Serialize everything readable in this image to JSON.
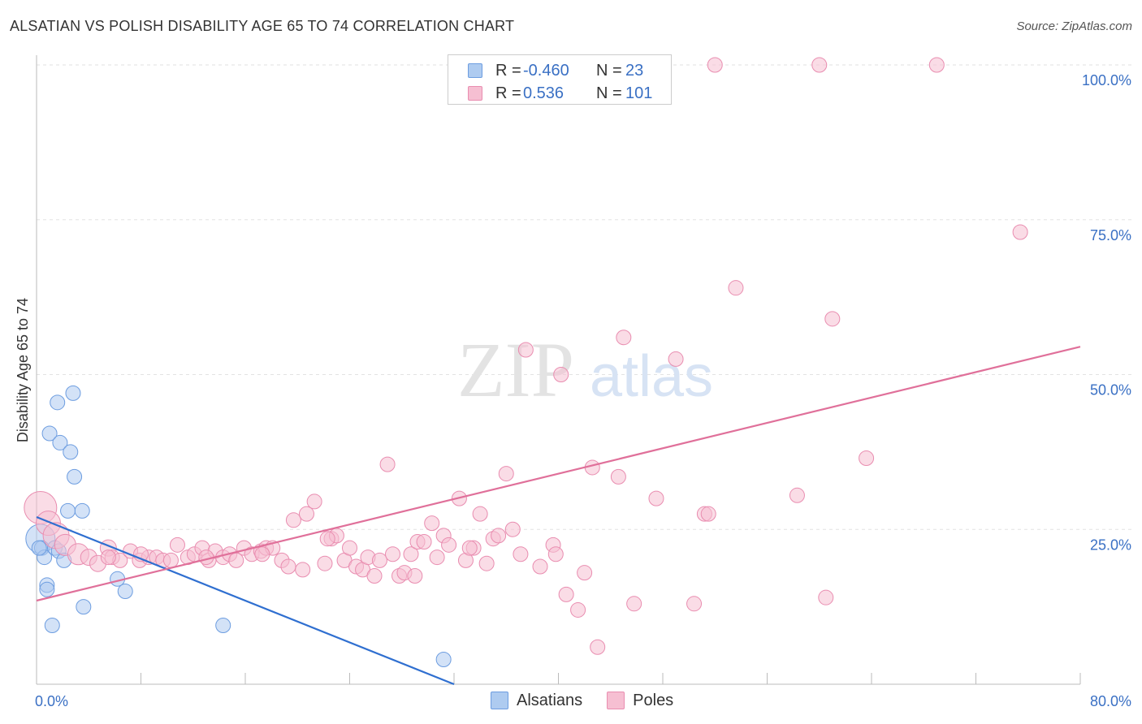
{
  "header": {
    "title": "ALSATIAN VS POLISH DISABILITY AGE 65 TO 74 CORRELATION CHART",
    "source": "Source: ZipAtlas.com"
  },
  "legend": {
    "rows": [
      {
        "r_label": "R =",
        "r_value": "-0.460",
        "n_label": "N =",
        "n_value": "23"
      },
      {
        "r_label": "R =",
        "r_value": "0.536",
        "n_label": "N =",
        "n_value": "101"
      }
    ],
    "series": [
      "Alsatians",
      "Poles"
    ]
  },
  "watermark": {
    "zip": "ZIP",
    "atlas": "atlas"
  },
  "colors": {
    "alsatians_fill": "#aecbf0",
    "alsatians_stroke": "#6d9de0",
    "alsatians_line": "#2f6fd0",
    "poles_fill": "#f6bfd2",
    "poles_stroke": "#e98db0",
    "poles_line": "#e0709a",
    "tick_text": "#3a70c4"
  },
  "chart_data": {
    "type": "scatter",
    "title": "ALSATIAN VS POLISH DISABILITY AGE 65 TO 74 CORRELATION CHART",
    "xlabel": "",
    "ylabel": "Disability Age 65 to 74",
    "xlim": [
      0,
      80
    ],
    "ylim": [
      0,
      100
    ],
    "x_tick_labels": [
      {
        "value": 0,
        "label": "0.0%"
      },
      {
        "value": 80,
        "label": "80.0%"
      }
    ],
    "y_tick_labels": [
      {
        "value": 25,
        "label": "25.0%"
      },
      {
        "value": 50,
        "label": "50.0%"
      },
      {
        "value": 75,
        "label": "75.0%"
      },
      {
        "value": 100,
        "label": "100.0%"
      }
    ],
    "series": [
      {
        "name": "Alsatians",
        "r": -0.46,
        "n": 23,
        "trend": {
          "x0": 0,
          "y0": 27.0,
          "x1": 32,
          "y1": 0
        },
        "points": [
          [
            0.3,
            23.5,
            18
          ],
          [
            0.4,
            22.0,
            9
          ],
          [
            0.6,
            20.5,
            9
          ],
          [
            0.8,
            16.0,
            9
          ],
          [
            0.8,
            15.3,
            9
          ],
          [
            1.0,
            40.5,
            9
          ],
          [
            1.2,
            9.5,
            9
          ],
          [
            1.6,
            45.5,
            9
          ],
          [
            1.4,
            22.0,
            9
          ],
          [
            1.7,
            21.5,
            9
          ],
          [
            1.8,
            39.0,
            9
          ],
          [
            2.1,
            20.0,
            9
          ],
          [
            2.4,
            28.0,
            9
          ],
          [
            2.6,
            37.5,
            9
          ],
          [
            2.8,
            47.0,
            9
          ],
          [
            2.9,
            33.5,
            9
          ],
          [
            3.5,
            28.0,
            9
          ],
          [
            3.6,
            12.5,
            9
          ],
          [
            6.2,
            17.0,
            9
          ],
          [
            6.8,
            15.0,
            9
          ],
          [
            14.3,
            9.5,
            9
          ],
          [
            31.2,
            4.0,
            9
          ],
          [
            0.2,
            22.0,
            9
          ]
        ]
      },
      {
        "name": "Poles",
        "r": 0.536,
        "n": 101,
        "trend": {
          "x0": 0,
          "y0": 13.5,
          "x1": 80,
          "y1": 54.5
        },
        "points": [
          [
            0.3,
            28.5,
            20
          ],
          [
            0.9,
            26.0,
            15
          ],
          [
            1.5,
            24.0,
            16
          ],
          [
            2.2,
            22.5,
            13
          ],
          [
            3.2,
            21.0,
            13
          ],
          [
            4.0,
            20.5,
            10
          ],
          [
            4.7,
            19.5,
            10
          ],
          [
            5.5,
            22.0,
            10
          ],
          [
            5.8,
            20.5,
            9
          ],
          [
            6.4,
            20.0,
            9
          ],
          [
            7.2,
            21.5,
            9
          ],
          [
            7.9,
            20.0,
            9
          ],
          [
            8.6,
            20.5,
            9
          ],
          [
            9.2,
            20.5,
            9
          ],
          [
            9.7,
            20.0,
            9
          ],
          [
            10.3,
            20.0,
            9
          ],
          [
            10.8,
            22.5,
            9
          ],
          [
            11.6,
            20.5,
            9
          ],
          [
            12.1,
            21.0,
            9
          ],
          [
            12.7,
            22.0,
            9
          ],
          [
            13.2,
            20.0,
            9
          ],
          [
            13.7,
            21.5,
            9
          ],
          [
            14.3,
            20.5,
            9
          ],
          [
            14.8,
            21.0,
            9
          ],
          [
            15.3,
            20.0,
            9
          ],
          [
            15.9,
            22.0,
            9
          ],
          [
            16.5,
            21.0,
            9
          ],
          [
            17.2,
            21.5,
            9
          ],
          [
            17.6,
            22.0,
            9
          ],
          [
            18.1,
            22.0,
            9
          ],
          [
            18.8,
            20.0,
            9
          ],
          [
            19.3,
            19.0,
            9
          ],
          [
            19.7,
            26.5,
            9
          ],
          [
            20.4,
            18.5,
            9
          ],
          [
            20.7,
            27.5,
            9
          ],
          [
            21.3,
            29.5,
            9
          ],
          [
            22.1,
            19.5,
            9
          ],
          [
            22.6,
            23.5,
            9
          ],
          [
            23.0,
            24.0,
            9
          ],
          [
            23.6,
            20.0,
            9
          ],
          [
            24.0,
            22.0,
            9
          ],
          [
            24.5,
            19.0,
            9
          ],
          [
            25.0,
            18.5,
            9
          ],
          [
            25.4,
            20.5,
            9
          ],
          [
            25.9,
            17.5,
            9
          ],
          [
            26.3,
            20.0,
            9
          ],
          [
            26.9,
            35.5,
            9
          ],
          [
            27.3,
            21.0,
            9
          ],
          [
            27.8,
            17.5,
            9
          ],
          [
            28.2,
            18.0,
            9
          ],
          [
            28.7,
            21.0,
            9
          ],
          [
            29.2,
            23.0,
            9
          ],
          [
            29.7,
            23.0,
            9
          ],
          [
            30.3,
            26.0,
            9
          ],
          [
            30.7,
            20.5,
            9
          ],
          [
            31.2,
            24.0,
            9
          ],
          [
            31.6,
            22.5,
            9
          ],
          [
            32.4,
            30.0,
            9
          ],
          [
            32.9,
            20.0,
            9
          ],
          [
            33.5,
            22.0,
            9
          ],
          [
            34.0,
            27.5,
            9
          ],
          [
            34.5,
            19.5,
            9
          ],
          [
            35.0,
            23.5,
            9
          ],
          [
            35.4,
            24.0,
            9
          ],
          [
            36.0,
            34.0,
            9
          ],
          [
            36.5,
            25.0,
            9
          ],
          [
            37.1,
            21.0,
            9
          ],
          [
            37.5,
            54.0,
            9
          ],
          [
            38.6,
            19.0,
            9
          ],
          [
            39.6,
            22.5,
            9
          ],
          [
            39.8,
            21.0,
            9
          ],
          [
            40.2,
            50.0,
            9
          ],
          [
            40.6,
            14.5,
            9
          ],
          [
            41.5,
            12.0,
            9
          ],
          [
            42.0,
            18.0,
            9
          ],
          [
            42.6,
            35.0,
            9
          ],
          [
            43.0,
            6.0,
            9
          ],
          [
            44.6,
            33.5,
            9
          ],
          [
            45.0,
            56.0,
            9
          ],
          [
            45.8,
            13.0,
            9
          ],
          [
            47.5,
            30.0,
            9
          ],
          [
            49.0,
            52.5,
            9
          ],
          [
            50.4,
            13.0,
            9
          ],
          [
            51.2,
            27.5,
            9
          ],
          [
            51.5,
            27.5,
            9
          ],
          [
            52.0,
            100.0,
            9
          ],
          [
            53.6,
            64.0,
            9
          ],
          [
            58.3,
            30.5,
            9
          ],
          [
            60.0,
            100.0,
            9
          ],
          [
            60.5,
            14.0,
            9
          ],
          [
            61.0,
            59.0,
            9
          ],
          [
            63.6,
            36.5,
            9
          ],
          [
            69.0,
            100.0,
            9
          ],
          [
            75.4,
            73.0,
            9
          ],
          [
            5.5,
            20.5,
            9
          ],
          [
            8.0,
            21.0,
            9
          ],
          [
            13.0,
            20.5,
            9
          ],
          [
            17.3,
            21.0,
            9
          ],
          [
            22.3,
            23.5,
            9
          ],
          [
            29.0,
            17.5,
            9
          ],
          [
            33.2,
            22.0,
            9
          ]
        ]
      }
    ]
  }
}
